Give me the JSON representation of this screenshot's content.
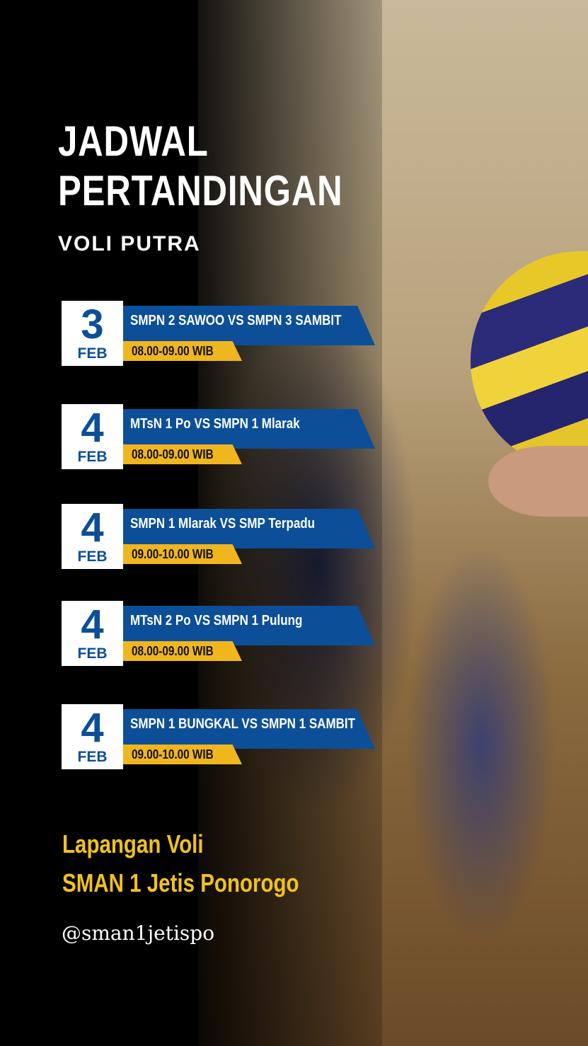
{
  "title_line1": "JADWAL",
  "title_line2": "PERTANDINGAN",
  "subtitle": "VOLI PUTRA",
  "matches": [
    {
      "day": "3",
      "month": "FEB",
      "teams": "SMPN 2 SAWOO VS SMPN 3 SAMBIT",
      "time": "08.00-09.00 WIB"
    },
    {
      "day": "4",
      "month": "FEB",
      "teams": "MTsN 1 Po VS SMPN 1 Mlarak",
      "time": "08.00-09.00 WIB"
    },
    {
      "day": "4",
      "month": "FEB",
      "teams": "SMPN 1 Mlarak VS SMP Terpadu",
      "time": "09.00-10.00 WIB"
    },
    {
      "day": "4",
      "month": "FEB",
      "teams": "MTsN 2 Po VS SMPN 1 Pulung",
      "time": "08.00-09.00 WIB"
    },
    {
      "day": "4",
      "month": "FEB",
      "teams": "SMPN 1 BUNGKAL VS SMPN 1 SAMBIT",
      "time": "09.00-10.00 WIB"
    }
  ],
  "venue_line1": "Lapangan Voli",
  "venue_line2": "SMAN 1 Jetis Ponorogo",
  "handle": "@sman1jetispo",
  "colors": {
    "blue": "#0c4f98",
    "yellow": "#f0b61e",
    "venue": "#f2c21a"
  }
}
